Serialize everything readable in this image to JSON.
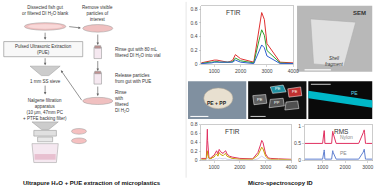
{
  "chart_data": [
    {
      "type": "diagram",
      "title": "Ultrapure H₂O + PUE extraction of microplastics",
      "annotations": [
        "Dissected fish gut\nor filtered DI H₂O blank",
        "Pulsed Ultrasonic Extraction\n(PUE)",
        "1 mm SS sieve",
        "Nalgene filtration\napparatus\n(10 μm, 47mm PC\n+ PTFE backing filter)",
        "Remove visible\nparticles of\ninterest",
        "Rinse gut with 80 mL\nfiltered DI H₂O into vial",
        "Release particles\nfrom gut with PUE",
        "Rinse\nwith\nfiltered\nDI H₂O"
      ]
    },
    {
      "type": "caption",
      "title": "Micro-spectroscopy ID"
    },
    {
      "type": "line",
      "title": "FTIR",
      "x": [
        500,
        600,
        700,
        800,
        900,
        1000,
        1100,
        1200,
        1300,
        1400,
        1500,
        1600,
        1700,
        1800,
        2000,
        2500,
        2700,
        2800,
        2900,
        3000,
        3500,
        4000
      ],
      "series": [
        {
          "color": "#e03030",
          "values": [
            0.02,
            0.03,
            0.04,
            0.04,
            0.05,
            0.06,
            0.06,
            0.05,
            0.04,
            0.04,
            0.03,
            0.04,
            0.06,
            0.14,
            0.08,
            0.03,
            0.55,
            0.75,
            0.65,
            0.3,
            0.03,
            0.02
          ]
        },
        {
          "color": "#30a030",
          "values": [
            0.01,
            0.02,
            0.03,
            0.03,
            0.03,
            0.04,
            0.04,
            0.03,
            0.03,
            0.03,
            0.02,
            0.03,
            0.04,
            0.09,
            0.05,
            0.02,
            0.35,
            0.5,
            0.42,
            0.2,
            0.02,
            0.01
          ]
        },
        {
          "color": "#3060d0",
          "values": [
            0.01,
            0.01,
            0.02,
            0.02,
            0.02,
            0.03,
            0.03,
            0.02,
            0.02,
            0.02,
            0.02,
            0.02,
            0.03,
            0.06,
            0.03,
            0.01,
            0.2,
            0.28,
            0.24,
            0.12,
            0.01,
            0.01
          ]
        }
      ],
      "xlim": [
        500,
        4000
      ],
      "xticks": [
        1000,
        2000,
        3000,
        4000
      ],
      "ylim": [
        0,
        0.85
      ],
      "yticks": [
        0,
        0.2,
        0.4,
        0.6,
        0.8
      ],
      "grid": false
    },
    {
      "type": "image",
      "title": "SEM",
      "annotations": [
        "Shell\nfragment"
      ]
    },
    {
      "type": "image",
      "annotations": [
        "PE + PP"
      ]
    },
    {
      "type": "image",
      "annotations": [
        "PE",
        "PE",
        "PE",
        "PP"
      ]
    },
    {
      "type": "image",
      "annotations": [
        "PE"
      ]
    },
    {
      "type": "line",
      "title": "FTIR",
      "x": [
        500,
        600,
        700,
        720,
        730,
        740,
        750,
        800,
        810,
        820,
        840,
        890,
        900,
        1000,
        1050,
        1100,
        1150,
        1200,
        1250,
        1300,
        1350,
        1400,
        1450,
        1500,
        1600,
        1700,
        2000,
        2500,
        2700,
        2800,
        2850,
        2900,
        2950,
        3000,
        3100,
        3200,
        3500,
        4000
      ],
      "series": [
        {
          "color": "#e03060",
          "values": [
            0.05,
            0.05,
            0.05,
            0.35,
            0.55,
            0.7,
            0.45,
            0.08,
            0.06,
            0.05,
            0.06,
            0.05,
            0.08,
            0.12,
            0.18,
            0.22,
            0.15,
            0.25,
            0.2,
            0.18,
            0.16,
            0.2,
            0.22,
            0.15,
            0.1,
            0.08,
            0.05,
            0.04,
            0.18,
            0.35,
            0.45,
            0.4,
            0.28,
            0.15,
            0.06,
            0.05,
            0.04,
            0.03
          ]
        },
        {
          "color": "#c8a000",
          "values": [
            0.03,
            0.03,
            0.03,
            0.12,
            0.18,
            0.22,
            0.15,
            0.05,
            0.04,
            0.04,
            0.05,
            0.04,
            0.06,
            0.08,
            0.12,
            0.15,
            0.1,
            0.18,
            0.14,
            0.12,
            0.11,
            0.14,
            0.16,
            0.1,
            0.07,
            0.05,
            0.03,
            0.03,
            0.12,
            0.22,
            0.3,
            0.26,
            0.18,
            0.1,
            0.04,
            0.03,
            0.03,
            0.02
          ]
        },
        {
          "color": "#d0d0f0",
          "values": [
            0.01,
            0.01,
            0.01,
            0.04,
            0.06,
            0.07,
            0.05,
            0.02,
            0.01,
            0.01,
            0.02,
            0.01,
            0.02,
            0.03,
            0.04,
            0.05,
            0.03,
            0.06,
            0.05,
            0.04,
            0.04,
            0.05,
            0.05,
            0.03,
            0.02,
            0.02,
            0.01,
            0.01,
            0.04,
            0.07,
            0.1,
            0.08,
            0.06,
            0.03,
            0.01,
            0.01,
            0.01,
            0.01
          ]
        }
      ],
      "xlim": [
        500,
        4000
      ],
      "xticks": [
        1000,
        2000,
        3000,
        4000
      ],
      "ylim": [
        0,
        0.8
      ],
      "yticks": [
        0,
        0.2,
        0.4,
        0.6,
        0.8
      ],
      "grid": false
    },
    {
      "type": "line",
      "title": "RMS",
      "x": [
        200,
        400,
        600,
        800,
        1000,
        1060,
        1070,
        1080,
        1100,
        1200,
        1400,
        1440,
        1450,
        1460,
        1600,
        1800,
        2000,
        2200,
        2400,
        2600,
        2800,
        2840,
        2845,
        2850,
        2860,
        2900,
        2950,
        3000,
        3200
      ],
      "series": [
        {
          "name": "Nylon",
          "color": "#e03060",
          "values": [
            0.5042,
            0.5042,
            0.5042,
            0.5042,
            0.5042,
            0.836,
            0.878,
            0.836,
            0.5042,
            0.5042,
            0.5042,
            0.815,
            0.857,
            0.815,
            0.5042,
            0.5042,
            0.5042,
            0.5042,
            0.5042,
            0.5042,
            0.815,
            0.878,
            0.899,
            0.878,
            0.815,
            0.5042,
            0.5042,
            0.5042,
            0.5042
          ]
        },
        {
          "name": "PE",
          "color": "#6080d0",
          "values": [
            0.0442,
            0.0442,
            0.0442,
            0.0442,
            0.0442,
            0.271,
            0.313,
            0.271,
            0.0442,
            0.0442,
            0.0442,
            0.25,
            0.292,
            0.25,
            0.0442,
            0.0442,
            0.0442,
            0.0442,
            0.0442,
            0.0442,
            0.25,
            0.313,
            0.334,
            0.313,
            0.25,
            0.0442,
            0.0442,
            0.0442,
            0.0442
          ]
        }
      ],
      "xlim": [
        200,
        3200
      ],
      "xticks": [
        1000,
        2000,
        3000
      ],
      "ylim": [
        0,
        1.05
      ],
      "yticks": [
        0,
        0.5,
        1
      ],
      "grid": false
    }
  ]
}
